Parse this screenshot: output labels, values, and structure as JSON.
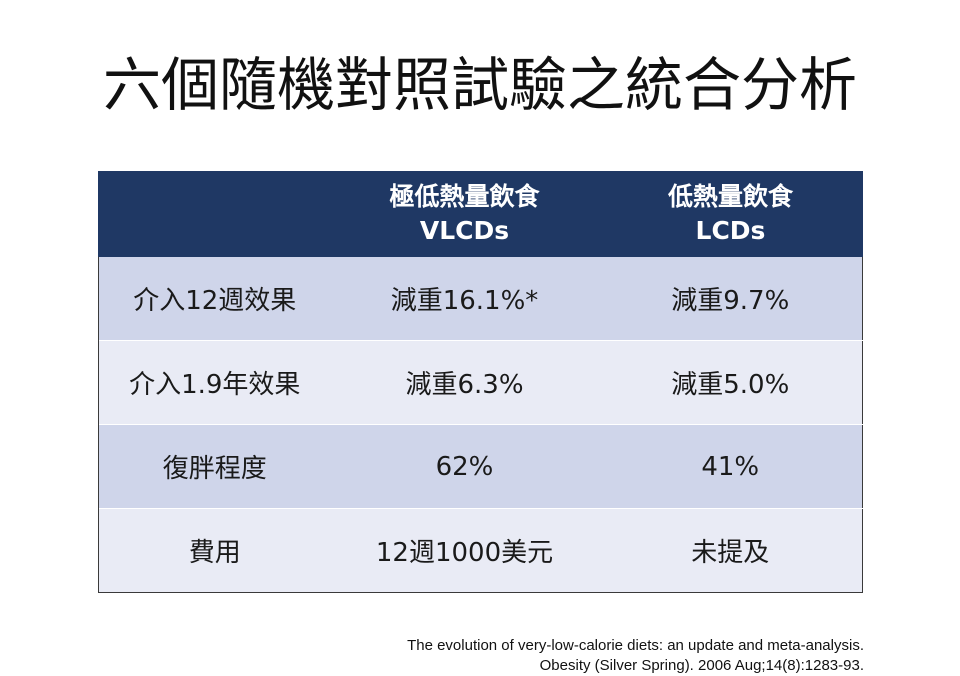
{
  "title": "六個隨機對照試驗之統合分析",
  "table": {
    "header": {
      "blank": "",
      "col1_line1": "極低熱量飲食",
      "col1_line2": "VLCDs",
      "col2_line1": "低熱量飲食",
      "col2_line2": "LCDs"
    },
    "rows": [
      {
        "label": "介入12週效果",
        "vlcd": "減重16.1%*",
        "lcd": "減重9.7%"
      },
      {
        "label": "介入1.9年效果",
        "vlcd": "減重6.3%",
        "lcd": "減重5.0%"
      },
      {
        "label": "復胖程度",
        "vlcd": "62%",
        "lcd": "41%"
      },
      {
        "label": "費用",
        "vlcd": "12週1000美元",
        "lcd": "未提及"
      }
    ]
  },
  "citation": {
    "line1": "The evolution of very-low-calorie diets: an update and meta-analysis.",
    "line2": "Obesity (Silver Spring). 2006 Aug;14(8):1283-93."
  },
  "colors": {
    "header_bg": "#1f3864",
    "row_dark": "#cfd5ea",
    "row_light": "#e9ebf5"
  }
}
